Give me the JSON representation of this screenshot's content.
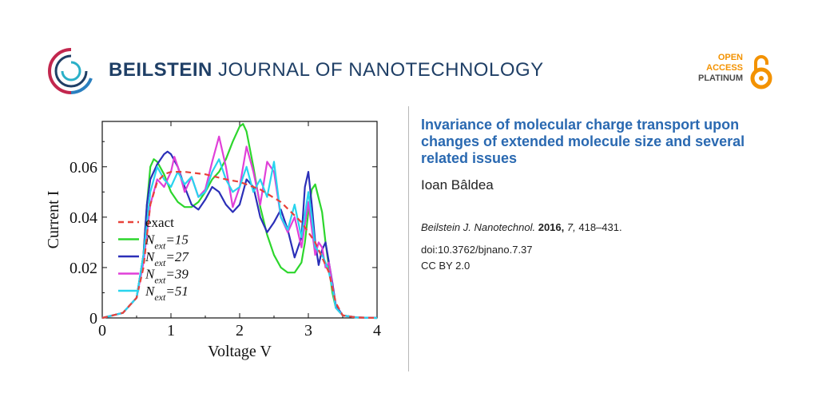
{
  "header": {
    "journal_bold": "BEILSTEIN",
    "journal_rest": " JOURNAL OF NANOTECHNOLOGY",
    "oa_line1": "OPEN",
    "oa_line2": "ACCESS",
    "oa_line3": "PLATINUM"
  },
  "article": {
    "title": "Invariance of molecular charge transport upon changes of extended molecule size and several related issues",
    "author": "Ioan Bâldea",
    "journal_abbrev": "Beilstein J. Nanotechnol.",
    "year": "2016,",
    "volume": "7,",
    "pages": "418–431.",
    "doi": "doi:10.3762/bjnano.7.37",
    "license": "CC BY 2.0"
  },
  "colors": {
    "title": "#2a69b1",
    "brand": "#1f3f66",
    "oa": "#f39200"
  },
  "chart_data": {
    "type": "line",
    "xlabel": "Voltage V",
    "ylabel": "Current I",
    "xlim": [
      0,
      4
    ],
    "ylim": [
      0,
      0.078
    ],
    "xticks": [
      "0",
      "1",
      "2",
      "3",
      "4"
    ],
    "yticks": [
      "0",
      "0.02",
      "0.04",
      "0.06"
    ],
    "ytick_values": [
      0,
      0.02,
      0.04,
      0.06
    ],
    "legend_position": "left",
    "series": [
      {
        "name": "exact",
        "sub": "",
        "val": "",
        "color": "#e8423a",
        "dash": true,
        "x": [
          0,
          0.3,
          0.5,
          0.6,
          0.7,
          0.8,
          0.9,
          1.0,
          1.2,
          1.5,
          1.8,
          2.0,
          2.3,
          2.6,
          2.9,
          3.1,
          3.2,
          3.3,
          3.35,
          3.4,
          3.5,
          3.7,
          4.0
        ],
        "y": [
          0,
          0.002,
          0.008,
          0.02,
          0.045,
          0.054,
          0.057,
          0.058,
          0.058,
          0.057,
          0.055,
          0.054,
          0.051,
          0.046,
          0.038,
          0.03,
          0.024,
          0.018,
          0.012,
          0.006,
          0.001,
          0.0002,
          0
        ]
      },
      {
        "name": "N",
        "sub": "ext",
        "val": "=15",
        "color": "#2dd62d",
        "dash": false,
        "x": [
          0,
          0.3,
          0.5,
          0.6,
          0.65,
          0.7,
          0.75,
          0.8,
          0.9,
          1.0,
          1.1,
          1.2,
          1.3,
          1.4,
          1.5,
          1.6,
          1.7,
          1.8,
          1.9,
          2.0,
          2.05,
          2.1,
          2.2,
          2.3,
          2.4,
          2.5,
          2.6,
          2.7,
          2.8,
          2.9,
          2.95,
          3.0,
          3.05,
          3.1,
          3.2,
          3.25,
          3.3,
          3.35,
          3.4,
          3.5,
          3.7,
          4.0
        ],
        "y": [
          0,
          0.002,
          0.008,
          0.025,
          0.045,
          0.06,
          0.063,
          0.062,
          0.057,
          0.05,
          0.046,
          0.044,
          0.044,
          0.046,
          0.05,
          0.055,
          0.058,
          0.063,
          0.07,
          0.076,
          0.077,
          0.074,
          0.06,
          0.044,
          0.033,
          0.025,
          0.02,
          0.018,
          0.018,
          0.022,
          0.03,
          0.042,
          0.051,
          0.053,
          0.042,
          0.03,
          0.02,
          0.01,
          0.004,
          0.001,
          0.0002,
          0
        ]
      },
      {
        "name": "N",
        "sub": "ext",
        "val": "=27",
        "color": "#2b2fb8",
        "dash": false,
        "x": [
          0,
          0.3,
          0.5,
          0.6,
          0.65,
          0.7,
          0.8,
          0.9,
          0.95,
          1.0,
          1.1,
          1.2,
          1.3,
          1.4,
          1.5,
          1.6,
          1.7,
          1.8,
          1.9,
          2.0,
          2.1,
          2.2,
          2.3,
          2.4,
          2.5,
          2.6,
          2.7,
          2.8,
          2.9,
          2.95,
          3.0,
          3.05,
          3.1,
          3.15,
          3.2,
          3.25,
          3.3,
          3.35,
          3.4,
          3.5,
          3.7,
          4.0
        ],
        "y": [
          0,
          0.002,
          0.008,
          0.025,
          0.045,
          0.055,
          0.061,
          0.065,
          0.066,
          0.065,
          0.06,
          0.052,
          0.045,
          0.043,
          0.047,
          0.052,
          0.05,
          0.045,
          0.042,
          0.045,
          0.055,
          0.052,
          0.04,
          0.034,
          0.038,
          0.043,
          0.035,
          0.024,
          0.032,
          0.052,
          0.058,
          0.045,
          0.03,
          0.021,
          0.027,
          0.03,
          0.022,
          0.014,
          0.005,
          0.001,
          0.0002,
          0
        ]
      },
      {
        "name": "N",
        "sub": "ext",
        "val": "=39",
        "color": "#e040d8",
        "dash": false,
        "x": [
          0,
          0.3,
          0.5,
          0.6,
          0.7,
          0.8,
          0.9,
          1.0,
          1.05,
          1.1,
          1.2,
          1.3,
          1.4,
          1.5,
          1.6,
          1.7,
          1.8,
          1.9,
          2.0,
          2.1,
          2.2,
          2.3,
          2.4,
          2.5,
          2.6,
          2.7,
          2.8,
          2.9,
          3.0,
          3.1,
          3.15,
          3.2,
          3.25,
          3.3,
          3.35,
          3.4,
          3.5,
          3.7,
          4.0
        ],
        "y": [
          0,
          0.002,
          0.008,
          0.022,
          0.045,
          0.055,
          0.052,
          0.058,
          0.064,
          0.06,
          0.05,
          0.056,
          0.048,
          0.051,
          0.062,
          0.072,
          0.06,
          0.044,
          0.052,
          0.068,
          0.058,
          0.045,
          0.062,
          0.058,
          0.04,
          0.034,
          0.04,
          0.028,
          0.046,
          0.025,
          0.03,
          0.028,
          0.02,
          0.022,
          0.013,
          0.004,
          0.001,
          0.0002,
          0
        ]
      },
      {
        "name": "N",
        "sub": "ext",
        "val": "=51",
        "color": "#28d4ee",
        "dash": false,
        "x": [
          0,
          0.3,
          0.5,
          0.6,
          0.7,
          0.8,
          0.9,
          1.0,
          1.1,
          1.2,
          1.3,
          1.4,
          1.5,
          1.6,
          1.7,
          1.8,
          1.9,
          2.0,
          2.1,
          2.2,
          2.3,
          2.4,
          2.5,
          2.6,
          2.7,
          2.8,
          2.9,
          3.0,
          3.05,
          3.1,
          3.2,
          3.25,
          3.3,
          3.35,
          3.4,
          3.5,
          3.7,
          4.0
        ],
        "y": [
          0,
          0.002,
          0.008,
          0.025,
          0.05,
          0.06,
          0.055,
          0.052,
          0.058,
          0.053,
          0.056,
          0.048,
          0.05,
          0.058,
          0.063,
          0.055,
          0.05,
          0.052,
          0.06,
          0.05,
          0.055,
          0.048,
          0.062,
          0.04,
          0.035,
          0.045,
          0.032,
          0.05,
          0.04,
          0.028,
          0.025,
          0.022,
          0.018,
          0.012,
          0.004,
          0.001,
          0.0002,
          0
        ]
      }
    ]
  }
}
